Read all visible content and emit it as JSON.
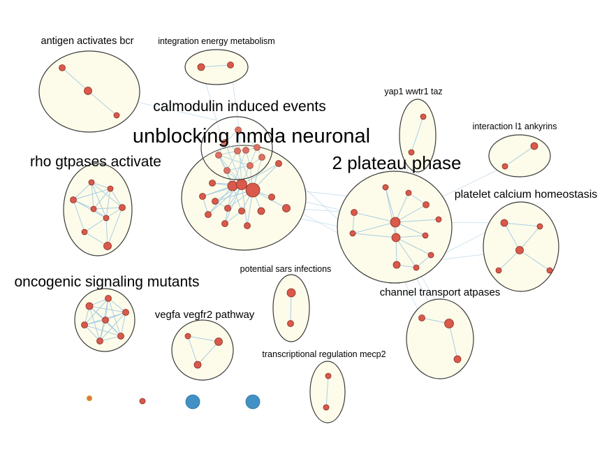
{
  "clusters": [
    {
      "id": "antigen",
      "label": "antigen activates bcr",
      "label_size": "medium"
    },
    {
      "id": "integration",
      "label": "integration energy metabolism",
      "label_size": "small"
    },
    {
      "id": "calmodulin",
      "label": "calmodulin induced events",
      "label_size": "large"
    },
    {
      "id": "unblocking",
      "label": "unblocking nmda neuronal",
      "label_size": "xlarge"
    },
    {
      "id": "rho",
      "label": "rho gtpases activate",
      "label_size": "large"
    },
    {
      "id": "yap1",
      "label": "yap1 wwtr1 taz",
      "label_size": "small"
    },
    {
      "id": "interaction",
      "label": "interaction l1 ankyrins",
      "label_size": "small"
    },
    {
      "id": "plateau",
      "label": "2 plateau phase",
      "label_size": "xlarge"
    },
    {
      "id": "platelet",
      "label": "platelet calcium homeostasis",
      "label_size": "medium-large"
    },
    {
      "id": "oncogenic",
      "label": "oncogenic signaling mutants",
      "label_size": "large"
    },
    {
      "id": "vegfa",
      "label": "vegfa vegfr2 pathway",
      "label_size": "medium"
    },
    {
      "id": "sars",
      "label": "potential sars infections",
      "label_size": "small"
    },
    {
      "id": "channel",
      "label": "channel transport atpases",
      "label_size": "medium"
    },
    {
      "id": "mecp2",
      "label": "transcriptional regulation mecp2",
      "label_size": "small"
    }
  ],
  "legend": {
    "items": [
      {
        "shape": "circle",
        "color": "#e0753d",
        "border": "#d4a02e",
        "size": "small"
      },
      {
        "shape": "circle",
        "color": "#d9594b",
        "border": "#8a2f26",
        "size": "small"
      },
      {
        "shape": "circle",
        "color": "#4191c5",
        "border": "#2d6f9e",
        "size": "large"
      },
      {
        "shape": "circle",
        "color": "#4191c5",
        "border": "#2d6f9e",
        "size": "large"
      }
    ]
  },
  "colors": {
    "node_fill": "#d9594b",
    "node_border": "#8a2f26",
    "cluster_fill": "#fdfcea",
    "cluster_border": "#3a3a3a",
    "edge": "#a9cde3"
  }
}
